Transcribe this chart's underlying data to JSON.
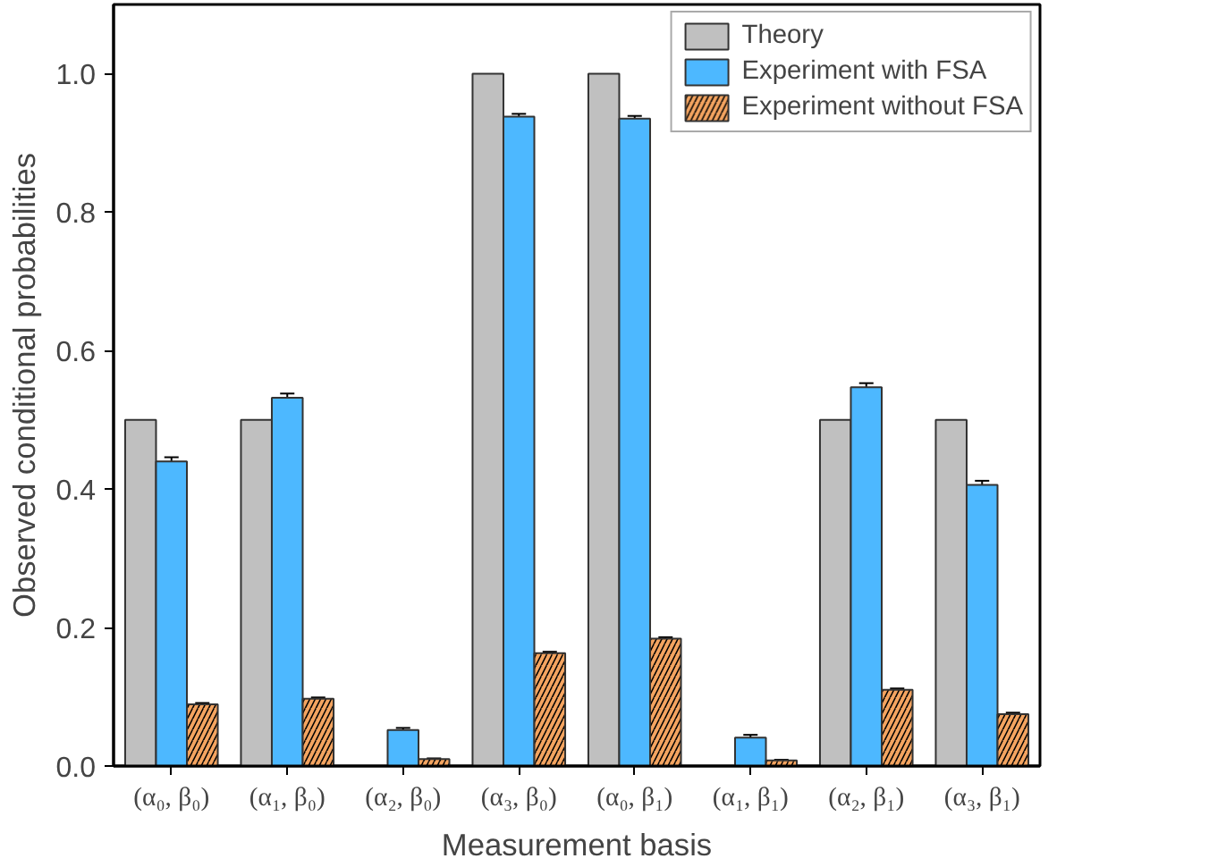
{
  "chart_data": {
    "type": "bar",
    "xlabel": "Measurement basis",
    "ylabel": "Observed conditional probabilities",
    "categories": [
      "(α₀, β₀)",
      "(α₁, β₀)",
      "(α₂, β₀)",
      "(α₃, β₀)",
      "(α₀, β₁)",
      "(α₁, β₁)",
      "(α₂, β₁)",
      "(α₃, β₁)"
    ],
    "series": [
      {
        "name": "Theory",
        "color": "#c0c0c0",
        "values": [
          0.5,
          0.5,
          0,
          1,
          1,
          0,
          0.5,
          0.5
        ]
      },
      {
        "name": "Experiment with FSA",
        "color": "#4db8ff",
        "values": [
          0.44,
          0.532,
          0.052,
          0.938,
          0.935,
          0.041,
          0.547,
          0.406
        ],
        "errors": [
          0.006,
          0.006,
          0.003,
          0.004,
          0.004,
          0.004,
          0.006,
          0.006
        ]
      },
      {
        "name": "Experiment without FSA",
        "color": "#f4a460",
        "values": [
          0.089,
          0.097,
          0.01,
          0.163,
          0.184,
          0.008,
          0.11,
          0.075
        ],
        "errors": [
          0.002,
          0.002,
          0.001,
          0.002,
          0.002,
          0.001,
          0.002,
          0.002
        ]
      }
    ],
    "ylim": [
      0,
      1.1
    ],
    "yticks": [
      {
        "value": 0,
        "label": "0.0"
      },
      {
        "value": 0.2,
        "label": "0.2"
      },
      {
        "value": 0.4,
        "label": "0.4"
      },
      {
        "value": 0.6,
        "label": "0.6"
      },
      {
        "value": 0.8,
        "label": "0.8"
      },
      {
        "value": 1,
        "label": "1.0"
      }
    ],
    "grid": false,
    "legend": "top right"
  }
}
